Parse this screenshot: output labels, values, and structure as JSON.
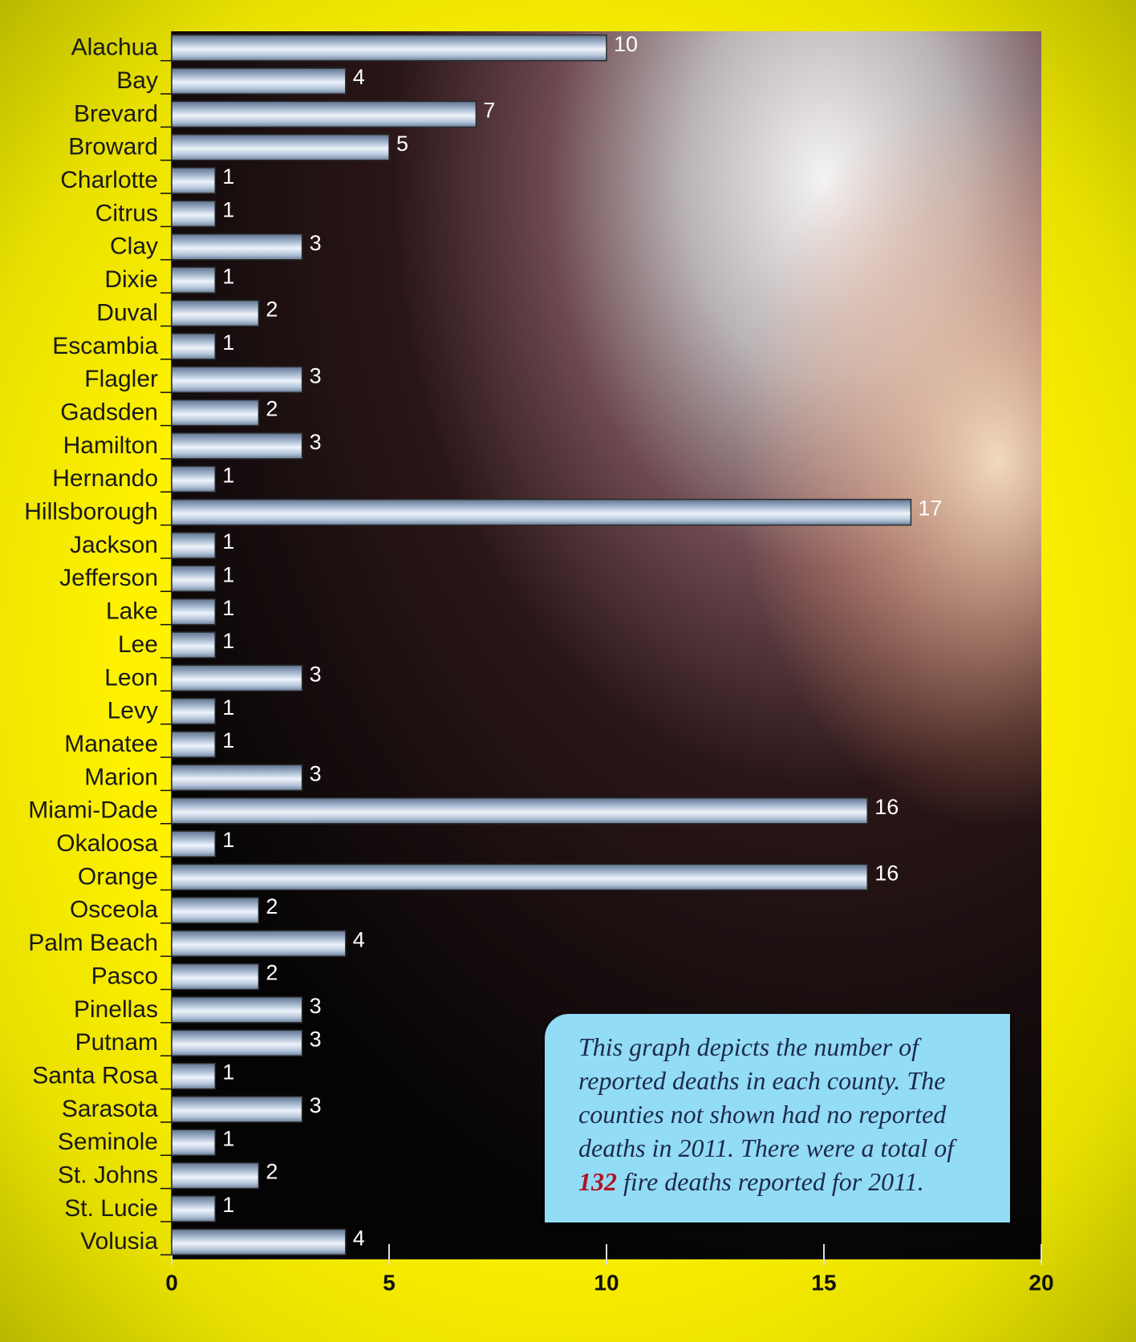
{
  "chart_data": {
    "type": "bar",
    "orientation": "horizontal",
    "categories": [
      "Alachua",
      "Bay",
      "Brevard",
      "Broward",
      "Charlotte",
      "Citrus",
      "Clay",
      "Dixie",
      "Duval",
      "Escambia",
      "Flagler",
      "Gadsden",
      "Hamilton",
      "Hernando",
      "Hillsborough",
      "Jackson",
      "Jefferson",
      "Lake",
      "Lee",
      "Leon",
      "Levy",
      "Manatee",
      "Marion",
      "Miami-Dade",
      "Okaloosa",
      "Orange",
      "Osceola",
      "Palm Beach",
      "Pasco",
      "Pinellas",
      "Putnam",
      "Santa Rosa",
      "Sarasota",
      "Seminole",
      "St. Johns",
      "St. Lucie",
      "Volusia"
    ],
    "values": [
      10,
      4,
      7,
      5,
      1,
      1,
      3,
      1,
      2,
      1,
      3,
      2,
      3,
      1,
      17,
      1,
      1,
      1,
      1,
      3,
      1,
      1,
      3,
      16,
      1,
      16,
      2,
      4,
      2,
      3,
      3,
      1,
      3,
      1,
      2,
      1,
      4
    ],
    "color": "#b4c5da",
    "xlim": [
      0,
      20
    ],
    "xticks": [
      0,
      5,
      10,
      15,
      20
    ],
    "note": {
      "before": "This graph depicts the number of reported deaths in each county. The counties not shown had no reported deaths in 2011. There were a total of",
      "number": "132",
      "after": "fire deaths reported for 2011."
    }
  }
}
